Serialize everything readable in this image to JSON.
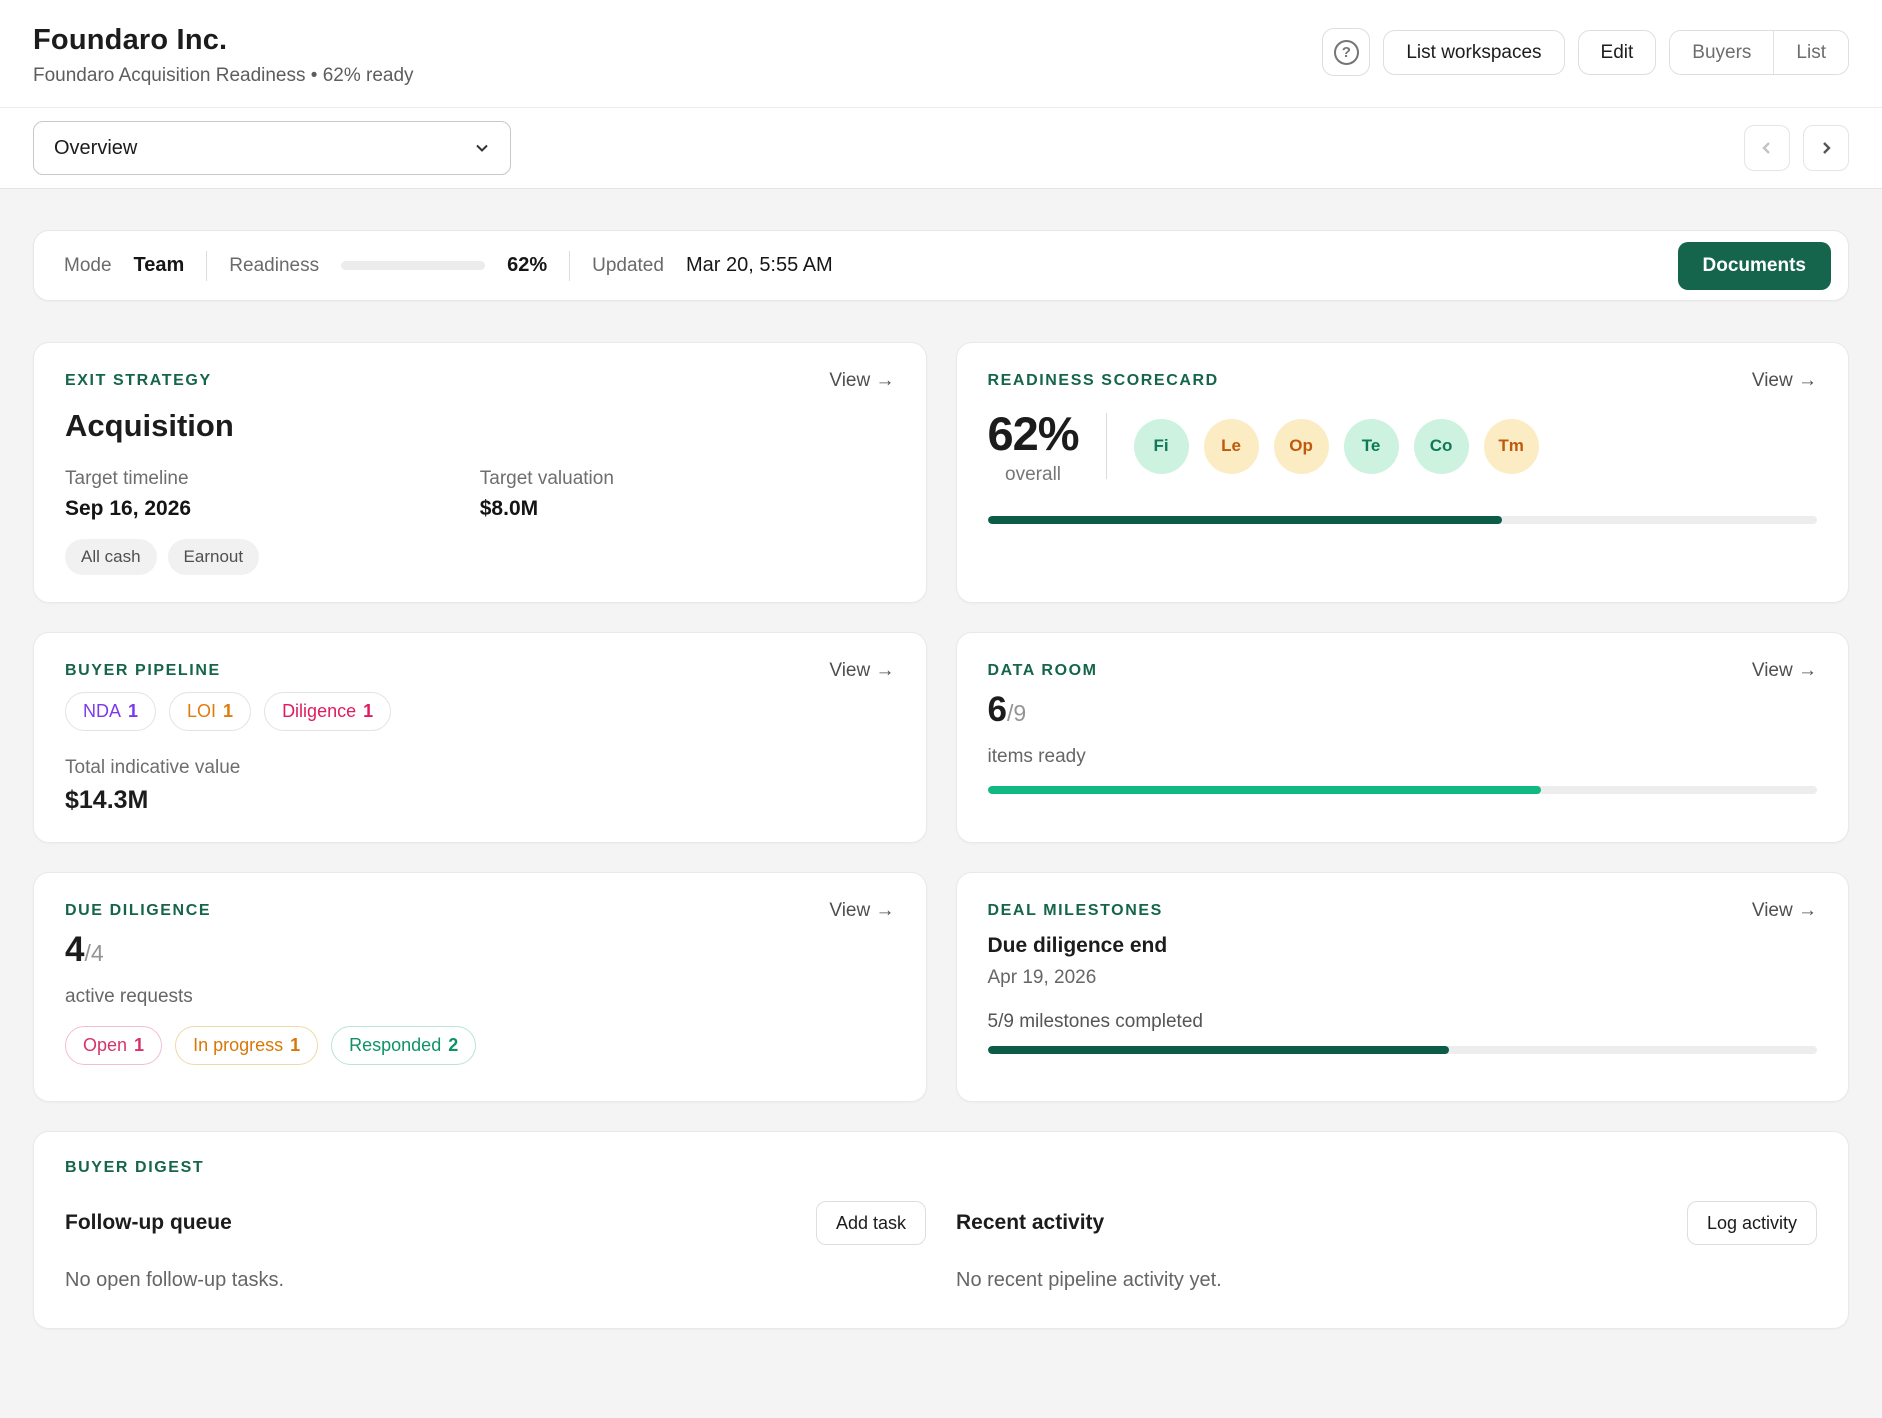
{
  "header": {
    "title": "Foundaro Inc.",
    "subtitle": "Foundaro Acquisition Readiness • 62% ready",
    "help_icon": "circled-question-mark",
    "buttons": {
      "list_workspaces": "List workspaces",
      "edit": "Edit",
      "buyers": "Buyers",
      "list": "List"
    }
  },
  "toolbar": {
    "view_selector_value": "Overview",
    "prev_icon": "chevron-left",
    "next_icon": "chevron-right"
  },
  "status_bar": {
    "mode_label": "Mode",
    "mode_value": "Team",
    "readiness_label": "Readiness",
    "readiness_percent": 62,
    "readiness_value": "62%",
    "updated_label": "Updated",
    "updated_value": "Mar 20, 5:55 AM",
    "documents_button": "Documents"
  },
  "cards": {
    "exit_strategy": {
      "title": "Exit Strategy",
      "view_link": "View →",
      "headline": "Acquisition",
      "timeline_label": "Target timeline",
      "timeline_value": "Sep 16, 2026",
      "valuation_label": "Target valuation",
      "valuation_value": "$8.0M",
      "tags": {
        "0": "All cash",
        "1": "Earnout"
      }
    },
    "readiness_scorecard": {
      "title": "Readiness Scorecard",
      "view_link": "View →",
      "percent": "62%",
      "percent_label": "overall",
      "progress_percent": 62,
      "dimensions": {
        "0": {
          "label": "Fi",
          "tone": "green"
        },
        "1": {
          "label": "Le",
          "tone": "amber"
        },
        "2": {
          "label": "Op",
          "tone": "amber"
        },
        "3": {
          "label": "Te",
          "tone": "green"
        },
        "4": {
          "label": "Co",
          "tone": "green"
        },
        "5": {
          "label": "Tm",
          "tone": "amber"
        }
      }
    },
    "buyer_pipeline": {
      "title": "Buyer Pipeline",
      "view_link": "View →",
      "stages": {
        "0": {
          "label": "NDA",
          "count": "1",
          "tone": "purple"
        },
        "1": {
          "label": "LOI",
          "count": "1",
          "tone": "orange"
        },
        "2": {
          "label": "Diligence",
          "count": "1",
          "tone": "pink"
        }
      },
      "total_label": "Total indicative value",
      "total_value": "$14.3M"
    },
    "data_room": {
      "title": "Data Room",
      "view_link": "View →",
      "count": "6",
      "total": "/9",
      "caption": "items ready",
      "progress_percent": 66.7
    },
    "due_diligence": {
      "title": "Due Diligence",
      "view_link": "View →",
      "count": "4",
      "total": "/4",
      "caption": "active requests",
      "statuses": {
        "0": {
          "label": "Open",
          "count": "1",
          "tone": "pink"
        },
        "1": {
          "label": "In progress",
          "count": "1",
          "tone": "amber"
        },
        "2": {
          "label": "Responded",
          "count": "2",
          "tone": "green"
        }
      }
    },
    "deal_milestones": {
      "title": "Deal Milestones",
      "view_link": "View →",
      "headline": "Due diligence end",
      "date": "Apr 19, 2026",
      "caption": "5/9 milestones completed",
      "progress_percent": 55.6
    },
    "buyer_digest": {
      "title": "Buyer Digest",
      "followup_title": "Follow-up queue",
      "followup_button": "Add task",
      "followup_empty": "No open follow-up tasks.",
      "activity_title": "Recent activity",
      "activity_button": "Log activity",
      "activity_empty": "No recent pipeline activity yet."
    }
  },
  "colors": {
    "brand_green": "#15654c",
    "bar_green_dark": "#0d5c48",
    "bar_green_bright": "#10b981",
    "bar_track": "#ededed",
    "mint_bg": "#cdf2e0",
    "mint_text": "#10795a",
    "amber_bg": "#fbecc3",
    "amber_text": "#bf5a0d",
    "purple": "#7c3aed",
    "orange": "#e07b0e",
    "pink": "#e01b60",
    "pink_text": "#d6336c",
    "pink_border": "#f3bed2",
    "amber_border": "#f0d9a8",
    "inprogress_text": "#d97706",
    "responded_text": "#0d9466",
    "green_border": "#bce3d3",
    "chip_bg": "#f1f1f1"
  }
}
